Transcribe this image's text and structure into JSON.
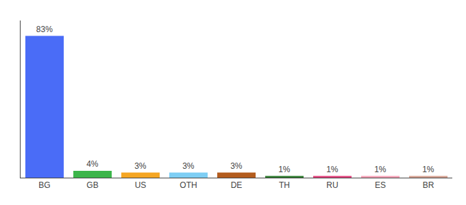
{
  "chart_data": {
    "type": "bar",
    "categories": [
      "BG",
      "GB",
      "US",
      "OTH",
      "DE",
      "TH",
      "RU",
      "ES",
      "BR"
    ],
    "values": [
      83,
      4,
      3,
      3,
      3,
      1,
      1,
      1,
      1
    ],
    "value_labels": [
      "83%",
      "4%",
      "3%",
      "3%",
      "3%",
      "1%",
      "1%",
      "1%",
      "1%"
    ],
    "data_labels": true,
    "colors": [
      "#4a6cf7",
      "#3cb54a",
      "#f5a623",
      "#7ecef4",
      "#b35c1e",
      "#2d7a2d",
      "#e0407b",
      "#f4a0b5",
      "#d4a090"
    ],
    "ylim": [
      0,
      92
    ],
    "tick_labels": "x",
    "grid": false
  }
}
